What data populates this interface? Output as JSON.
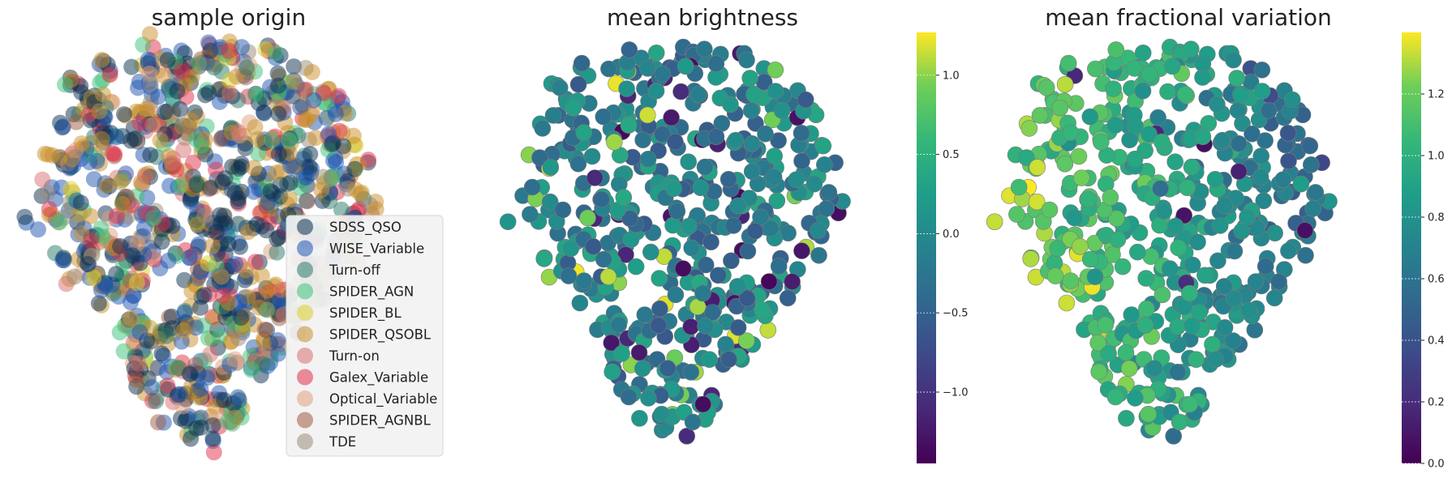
{
  "chart_data": [
    {
      "type": "scatter",
      "title": "sample origin",
      "legend_position": "lower-right",
      "categories": [
        {
          "name": "SDSS_QSO",
          "color": "#0b2f4f"
        },
        {
          "name": "WISE_Variable",
          "color": "#1f56b0"
        },
        {
          "name": "Turn-off",
          "color": "#2a7a6a"
        },
        {
          "name": "SPIDER_AGN",
          "color": "#3cc27a"
        },
        {
          "name": "SPIDER_BL",
          "color": "#d8d42a"
        },
        {
          "name": "SPIDER_QSOBL",
          "color": "#c98f2a"
        },
        {
          "name": "Turn-on",
          "color": "#d97070"
        },
        {
          "name": "Galex_Variable",
          "color": "#e0304a"
        },
        {
          "name": "Optical_Variable",
          "color": "#e0a080"
        },
        {
          "name": "SPIDER_AGNBL",
          "color": "#a05a40"
        },
        {
          "name": "TDE",
          "color": "#9a8a78"
        }
      ],
      "points": "approx. 1500 overlapping points forming a shared 2-D embedding cloud; per-point coordinates not labeled"
    },
    {
      "type": "scatter",
      "title": "mean brightness",
      "colormap": "viridis",
      "colorbar": {
        "min": -1.45,
        "max": 1.27,
        "ticks": [
          -1.0,
          -0.5,
          0.0,
          0.5,
          1.0
        ],
        "tick_labels": [
          "−1.0",
          "−0.5",
          "0.0",
          "0.5",
          "1.0"
        ]
      },
      "value_distribution": "mostly -0.6 to 0.4, a few highs near 1.2 and lows near -1.4"
    },
    {
      "type": "scatter",
      "title": "mean fractional variation",
      "colormap": "viridis",
      "colorbar": {
        "min": 0.0,
        "max": 1.4,
        "ticks": [
          0.0,
          0.2,
          0.4,
          0.6,
          0.8,
          1.0,
          1.2
        ],
        "tick_labels": [
          "0.0",
          "0.2",
          "0.4",
          "0.6",
          "0.8",
          "1.0",
          "1.2"
        ]
      },
      "value_distribution": "mostly 0.5 to 0.9, highest (~1.3) at the left edge of the cloud"
    }
  ]
}
